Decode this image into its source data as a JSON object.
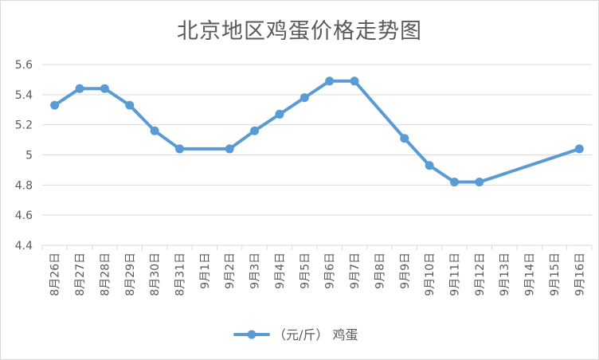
{
  "chart_data": {
    "type": "line",
    "title": "北京地区鸡蛋价格走势图",
    "categories": [
      "8月26日",
      "8月27日",
      "8月28日",
      "8月29日",
      "8月30日",
      "8月31日",
      "9月1日",
      "9月2日",
      "9月3日",
      "9月4日",
      "9月5日",
      "9月6日",
      "9月7日",
      "9月8日",
      "9月9日",
      "9月10日",
      "9月11日",
      "9月12日",
      "9月13日",
      "9月14日",
      "9月15日",
      "9月16日"
    ],
    "series": [
      {
        "name": "（元/斤） 鸡蛋",
        "color": "#5b9bd5",
        "values": [
          5.33,
          5.44,
          5.44,
          5.33,
          5.16,
          5.04,
          null,
          5.04,
          5.16,
          5.27,
          5.38,
          5.49,
          5.49,
          null,
          5.11,
          4.93,
          4.82,
          4.82,
          null,
          null,
          null,
          5.04
        ]
      }
    ],
    "y_ticks": [
      "4.4",
      "4.6",
      "4.8",
      "5",
      "5.2",
      "5.4",
      "5.6"
    ],
    "ylim": [
      4.4,
      5.6
    ],
    "grid": true,
    "legend_position": "bottom",
    "gridline_color": "#d9d9d9"
  }
}
